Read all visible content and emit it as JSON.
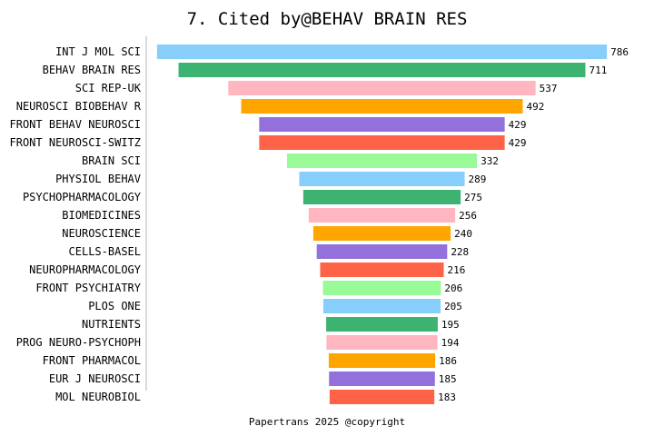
{
  "chart_data": {
    "type": "bar",
    "orientation": "horizontal-centered",
    "title": "7. Cited by@BEHAV BRAIN RES",
    "footer": "Papertrans 2025 @copyright",
    "categories": [
      "INT J MOL SCI",
      "BEHAV BRAIN RES",
      "SCI REP-UK",
      "NEUROSCI BIOBEHAV R",
      "FRONT BEHAV NEUROSCI",
      "FRONT NEUROSCI-SWITZ",
      "BRAIN SCI",
      "PHYSIOL BEHAV",
      "PSYCHOPHARMACOLOGY",
      "BIOMEDICINES",
      "NEUROSCIENCE",
      "CELLS-BASEL",
      "NEUROPHARMACOLOGY",
      "FRONT PSYCHIATRY",
      "PLOS ONE",
      "NUTRIENTS",
      "PROG NEURO-PSYCHOPH",
      "FRONT PHARMACOL",
      "EUR J NEUROSCI",
      "MOL NEUROBIOL"
    ],
    "values": [
      786,
      711,
      537,
      492,
      429,
      429,
      332,
      289,
      275,
      256,
      240,
      228,
      216,
      206,
      205,
      195,
      194,
      186,
      185,
      183
    ],
    "colors": [
      "#87CEFA",
      "#3CB371",
      "#FFB6C1",
      "#FFA500",
      "#9370DB",
      "#FF6347",
      "#98FB98"
    ],
    "data_labels": true,
    "grid": false
  }
}
